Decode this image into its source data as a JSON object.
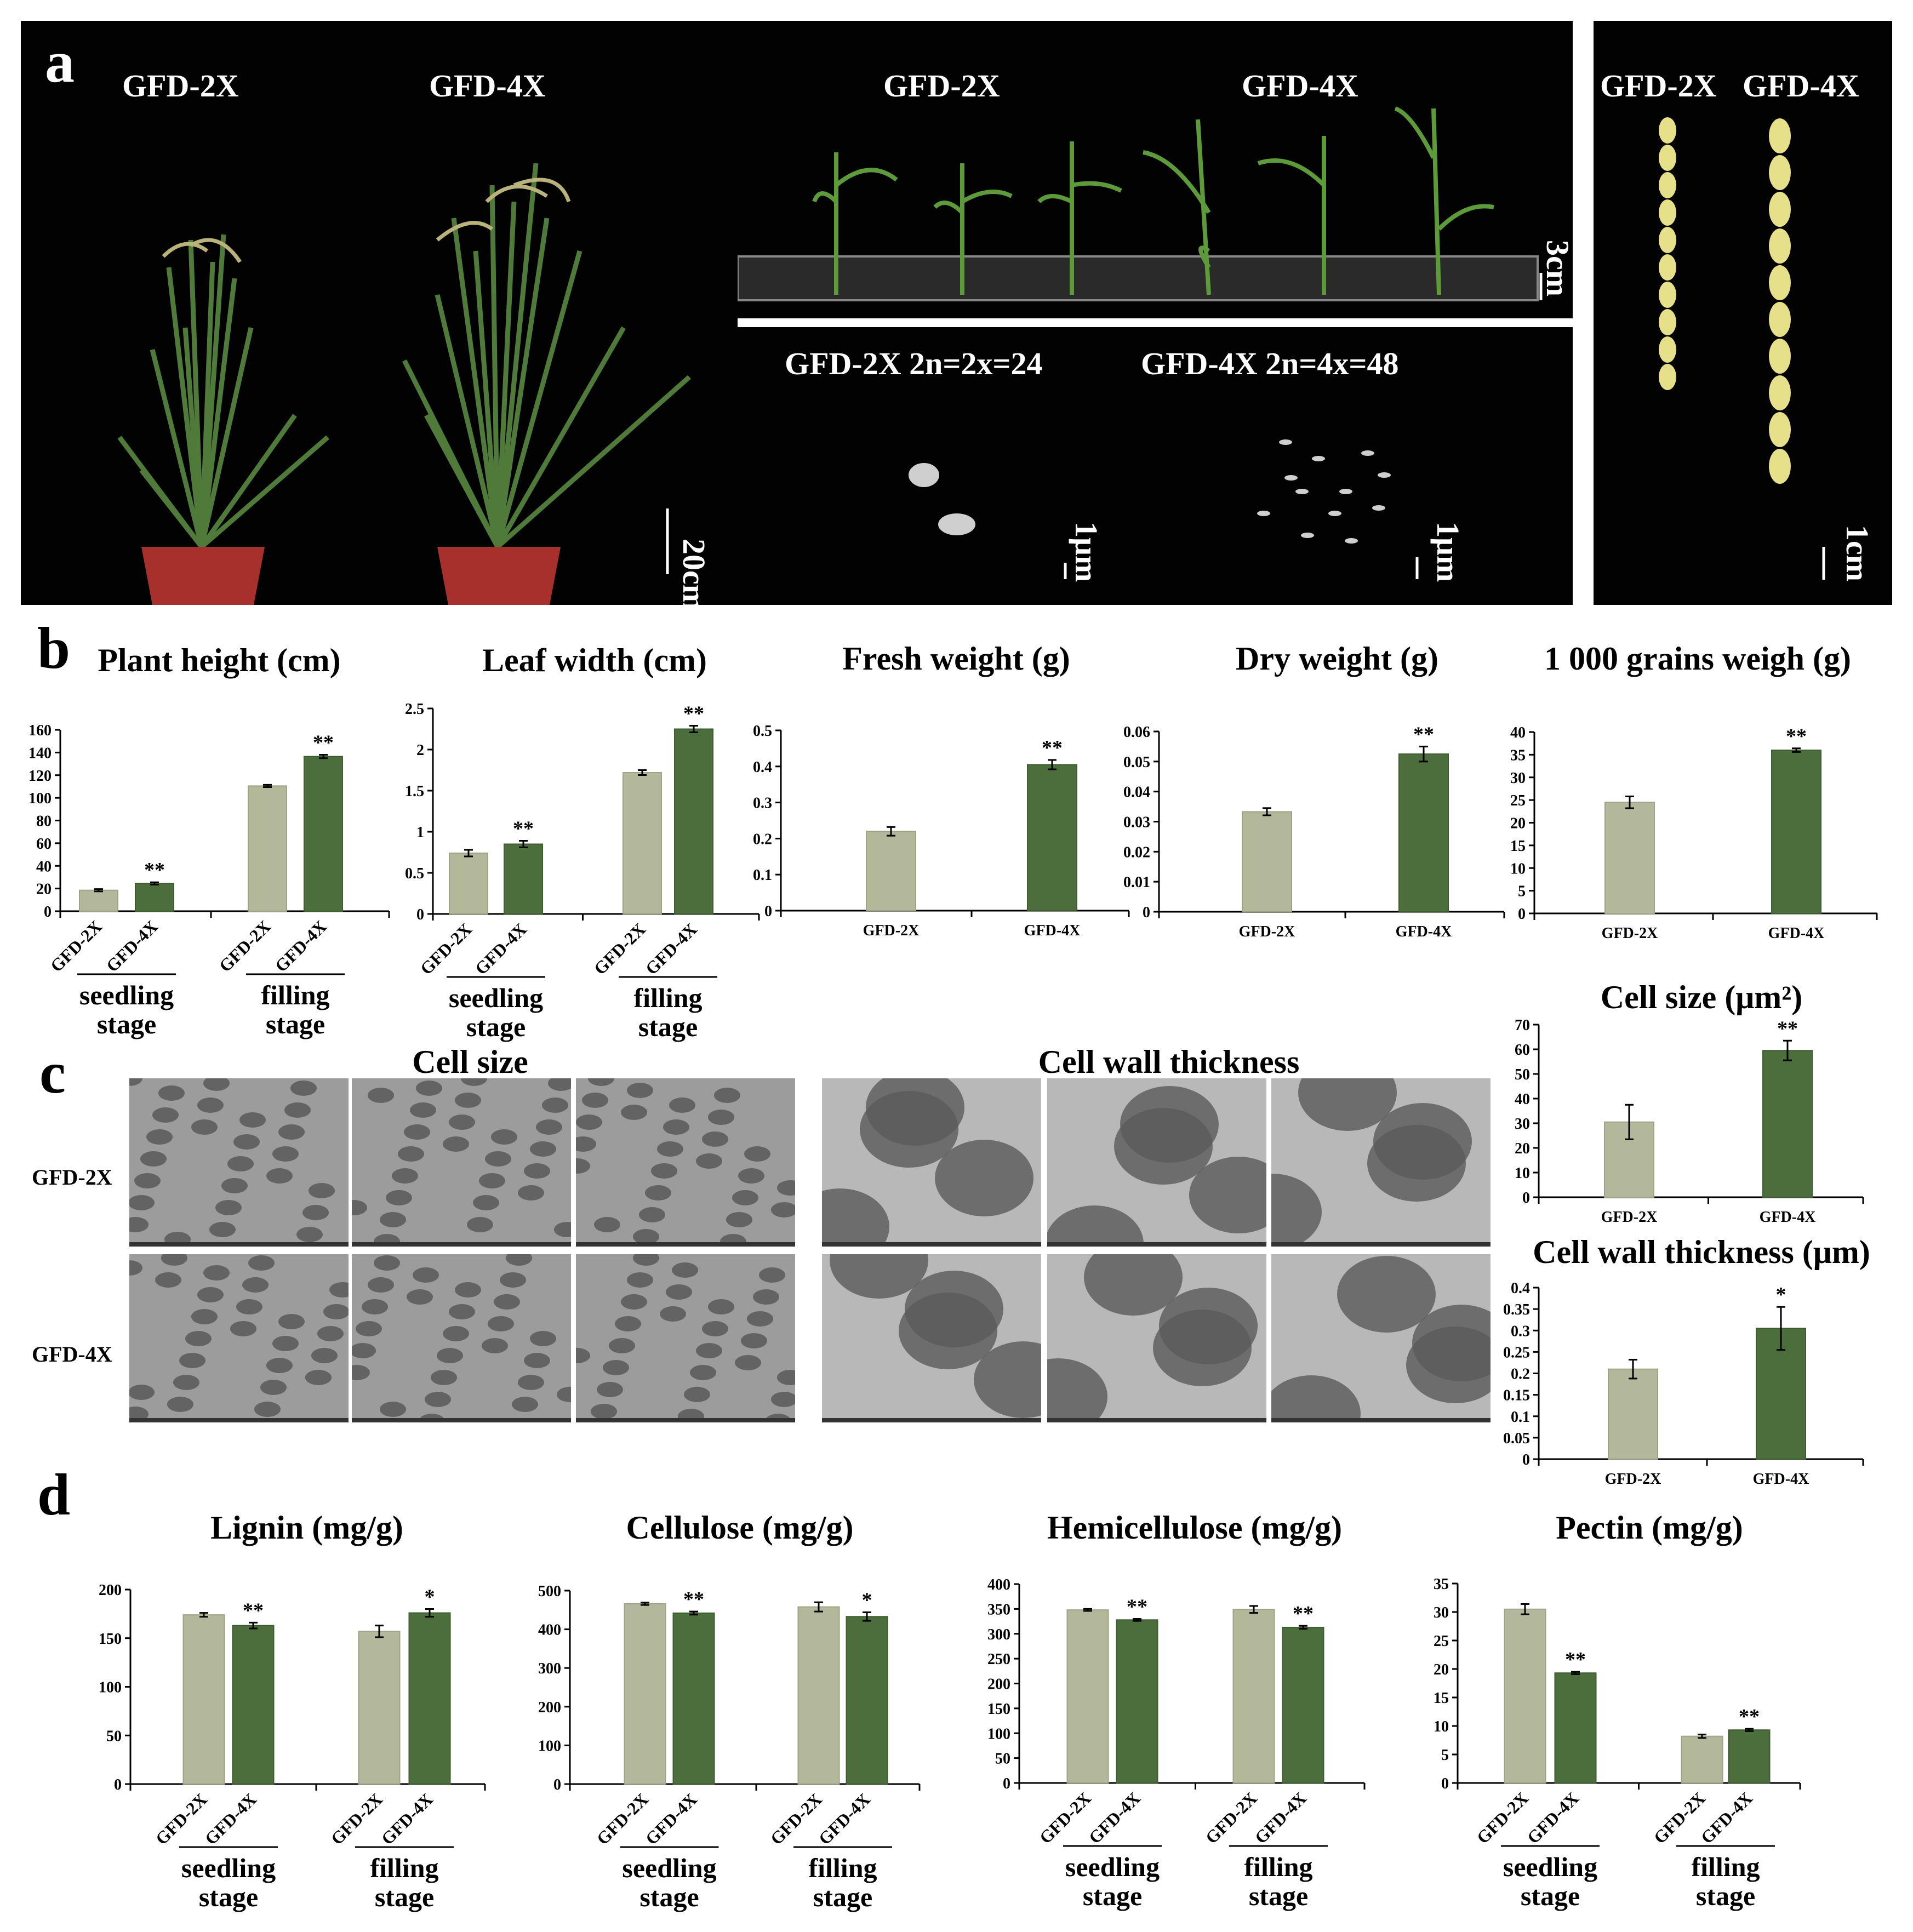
{
  "figure": {
    "panel_letters": [
      "a",
      "b",
      "c",
      "d"
    ],
    "panel_a": {
      "plants": {
        "labels": [
          "GFD-2X",
          "GFD-4X"
        ],
        "scale": "20cm"
      },
      "seedlings": {
        "labels": [
          "GFD-2X",
          "GFD-4X"
        ],
        "scale": "3cm"
      },
      "chromosomes": {
        "labels": [
          "GFD-2X 2n=2x=24",
          "GFD-4X 2n=4x=48"
        ],
        "scales": [
          "1μm",
          "1μm"
        ]
      },
      "grains": {
        "labels": [
          "GFD-2X",
          "GFD-4X"
        ],
        "scale": "1cm"
      }
    },
    "panel_c": {
      "section_titles": [
        "Cell size",
        "Cell wall thickness"
      ],
      "row_labels": [
        "GFD-2X",
        "GFD-4X"
      ]
    },
    "colors": {
      "light": "#b3b89a",
      "dark": "#4c6e3c"
    },
    "stage_labels": {
      "seedling": [
        "seedling",
        "stage"
      ],
      "filling": [
        "filling",
        "stage"
      ]
    }
  },
  "chart_data": [
    {
      "id": "plant_height",
      "type": "bar",
      "title": "Plant height (cm)",
      "categories": [
        "GFD-2X",
        "GFD-4X",
        "GFD-2X",
        "GFD-4X"
      ],
      "groups": [
        "seedling stage",
        "filling stage"
      ],
      "values": [
        18.5,
        24.5,
        110.5,
        136.5
      ],
      "errors": [
        1,
        1,
        1,
        1.5
      ],
      "sig": [
        "",
        "**",
        "",
        "**"
      ],
      "ylim": [
        0,
        160
      ],
      "yticks": [
        0,
        20,
        40,
        60,
        80,
        100,
        120,
        140,
        160
      ],
      "ytick_labels": [
        "0",
        "20",
        "40",
        "60",
        "80",
        "100",
        "120",
        "140",
        "160"
      ]
    },
    {
      "id": "leaf_width",
      "type": "bar",
      "title": "Leaf width (cm)",
      "categories": [
        "GFD-2X",
        "GFD-4X",
        "GFD-2X",
        "GFD-4X"
      ],
      "groups": [
        "seedling stage",
        "filling stage"
      ],
      "values": [
        0.74,
        0.85,
        1.72,
        2.25
      ],
      "errors": [
        0.04,
        0.04,
        0.03,
        0.04
      ],
      "sig": [
        "",
        "**",
        "",
        "**"
      ],
      "ylim": [
        0,
        2.5
      ],
      "yticks": [
        0,
        0.5,
        1,
        1.5,
        2,
        2.5
      ],
      "ytick_labels": [
        "0",
        "0.5",
        "1",
        "1.5",
        "2",
        "2.5"
      ]
    },
    {
      "id": "fresh_weight",
      "type": "bar",
      "title": "Fresh weight (g)",
      "categories": [
        "GFD-2X",
        "GFD-4X"
      ],
      "values": [
        0.22,
        0.405
      ],
      "errors": [
        0.012,
        0.013
      ],
      "sig": [
        "",
        "**"
      ],
      "ylim": [
        0,
        0.5
      ],
      "yticks": [
        0,
        0.1,
        0.2,
        0.3,
        0.4,
        0.5
      ],
      "ytick_labels": [
        "0",
        "0.1",
        "0.2",
        "0.3",
        "0.4",
        "0.5"
      ]
    },
    {
      "id": "dry_weight",
      "type": "bar",
      "title": "Dry weight (g)",
      "categories": [
        "GFD-2X",
        "GFD-4X"
      ],
      "values": [
        0.0333,
        0.0525
      ],
      "errors": [
        0.0012,
        0.0025
      ],
      "sig": [
        "",
        "**"
      ],
      "ylim": [
        0,
        0.06
      ],
      "yticks": [
        0,
        0.01,
        0.02,
        0.03,
        0.04,
        0.05,
        0.06
      ],
      "ytick_labels": [
        "0",
        "0.01",
        "0.02",
        "0.03",
        "0.04",
        "0.05",
        "0.06"
      ]
    },
    {
      "id": "grain_weight",
      "type": "bar",
      "title": "1 000 grains weigh (g)",
      "categories": [
        "GFD-2X",
        "GFD-4X"
      ],
      "values": [
        24.5,
        36
      ],
      "errors": [
        1.3,
        0.4
      ],
      "sig": [
        "",
        "**"
      ],
      "ylim": [
        0,
        40
      ],
      "yticks": [
        0,
        5,
        10,
        15,
        20,
        25,
        30,
        35,
        40
      ],
      "ytick_labels": [
        "0",
        "5",
        "10",
        "15",
        "20",
        "25",
        "30",
        "35",
        "40"
      ]
    },
    {
      "id": "cell_size",
      "type": "bar",
      "title": "Cell size (μm²)",
      "categories": [
        "GFD-2X",
        "GFD-4X"
      ],
      "values": [
        30.5,
        59.5
      ],
      "errors": [
        7,
        4
      ],
      "sig": [
        "",
        "**"
      ],
      "ylim": [
        0,
        70
      ],
      "yticks": [
        0,
        10,
        20,
        30,
        40,
        50,
        60,
        70
      ],
      "ytick_labels": [
        "0",
        "10",
        "20",
        "30",
        "40",
        "50",
        "60",
        "70"
      ]
    },
    {
      "id": "cell_wall",
      "type": "bar",
      "title": "Cell wall thickness (μm)",
      "categories": [
        "GFD-2X",
        "GFD-4X"
      ],
      "values": [
        0.21,
        0.305
      ],
      "errors": [
        0.022,
        0.05
      ],
      "sig": [
        "",
        "*"
      ],
      "ylim": [
        0,
        0.4
      ],
      "yticks": [
        0,
        0.05,
        0.1,
        0.15,
        0.2,
        0.25,
        0.3,
        0.35,
        0.4
      ],
      "ytick_labels": [
        "0",
        "0.05",
        "0.1",
        "0.15",
        "0.2",
        "0.25",
        "0.3",
        "0.35",
        "0.4"
      ]
    },
    {
      "id": "lignin",
      "type": "bar",
      "title": "Lignin (mg/g)",
      "categories": [
        "GFD-2X",
        "GFD-4X",
        "GFD-2X",
        "GFD-4X"
      ],
      "groups": [
        "seedling stage",
        "filling stage"
      ],
      "values": [
        174,
        163,
        157,
        176
      ],
      "errors": [
        2,
        3,
        6,
        4
      ],
      "sig": [
        "",
        "**",
        "",
        "*"
      ],
      "ylim": [
        0,
        200
      ],
      "yticks": [
        0,
        50,
        100,
        150,
        200
      ],
      "ytick_labels": [
        "0",
        "50",
        "100",
        "150",
        "200"
      ]
    },
    {
      "id": "cellulose",
      "type": "bar",
      "title": "Cellulose (mg/g)",
      "categories": [
        "GFD-2X",
        "GFD-4X",
        "GFD-2X",
        "GFD-4X"
      ],
      "groups": [
        "seedling stage",
        "filling stage"
      ],
      "values": [
        466,
        442,
        458,
        433
      ],
      "errors": [
        3,
        4,
        12,
        11
      ],
      "sig": [
        "",
        "**",
        "",
        "*"
      ],
      "ylim": [
        0,
        500
      ],
      "yticks": [
        0,
        100,
        200,
        300,
        400,
        500
      ],
      "ytick_labels": [
        "0",
        "100",
        "200",
        "300",
        "400",
        "500"
      ]
    },
    {
      "id": "hemicellulose",
      "type": "bar",
      "title": "Hemicellulose (mg/g)",
      "categories": [
        "GFD-2X",
        "GFD-4X",
        "GFD-2X",
        "GFD-4X"
      ],
      "groups": [
        "seedling stage",
        "filling stage"
      ],
      "values": [
        348,
        328,
        349,
        313
      ],
      "errors": [
        2,
        2,
        7,
        3
      ],
      "sig": [
        "",
        "**",
        "",
        "**"
      ],
      "ylim": [
        0,
        400
      ],
      "yticks": [
        0,
        50,
        100,
        150,
        200,
        250,
        300,
        350,
        400
      ],
      "ytick_labels": [
        "0",
        "50",
        "100",
        "150",
        "200",
        "250",
        "300",
        "350",
        "400"
      ]
    },
    {
      "id": "pectin",
      "type": "bar",
      "title": "Pectin (mg/g)",
      "categories": [
        "GFD-2X",
        "GFD-4X",
        "GFD-2X",
        "GFD-4X"
      ],
      "groups": [
        "seedling stage",
        "filling stage"
      ],
      "values": [
        30.5,
        19.3,
        8.2,
        9.3
      ],
      "errors": [
        0.9,
        0.2,
        0.3,
        0.2
      ],
      "sig": [
        "",
        "**",
        "",
        "**"
      ],
      "ylim": [
        0,
        35
      ],
      "yticks": [
        0,
        5,
        10,
        15,
        20,
        25,
        30,
        35
      ],
      "ytick_labels": [
        "0",
        "5",
        "10",
        "15",
        "20",
        "25",
        "30",
        "35"
      ]
    }
  ]
}
